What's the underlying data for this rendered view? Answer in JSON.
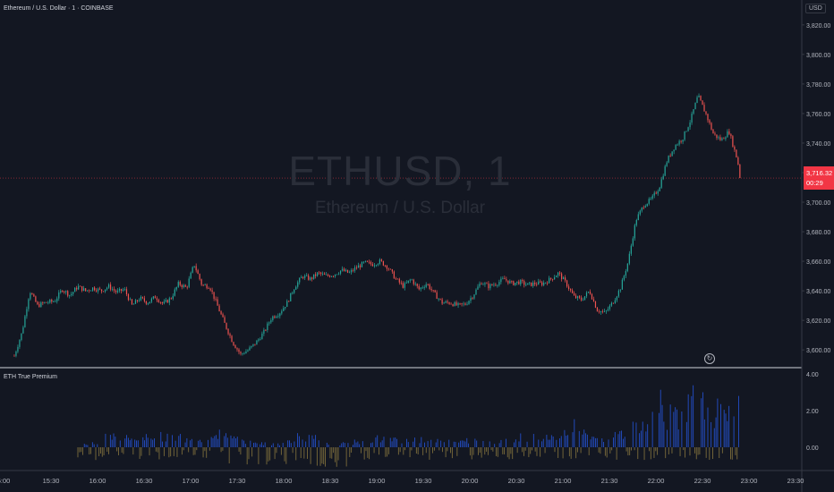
{
  "symbol_title": "Ethereum / U.S. Dollar · 1 · COINBASE",
  "watermark": {
    "ticker": "ETHUSD, 1",
    "name": "Ethereum / U.S. Dollar"
  },
  "currency_label": "USD",
  "last_price": {
    "value": "3,716.32",
    "countdown": "00:29"
  },
  "replay_icon": "replay-icon",
  "colors": {
    "background": "#131722",
    "up": "#26a69a",
    "down": "#ef5350",
    "volume": "#2962ff",
    "volume_dim": "#8d7a3f",
    "grid_separator": "#d1d4dc",
    "price_tag": "#f23645"
  },
  "indicator": {
    "name": "ETH True Premium",
    "y_ticks": [
      "4.00",
      "2.00",
      "0.00"
    ],
    "ylim": [
      -1.2,
      4.0
    ]
  },
  "chart_data": {
    "type": "candlestick",
    "x_ticks": [
      "5:00",
      "15:30",
      "16:00",
      "16:30",
      "17:00",
      "17:30",
      "18:00",
      "18:30",
      "19:00",
      "19:30",
      "20:00",
      "20:30",
      "21:00",
      "21:30",
      "22:00",
      "22:30",
      "23:00",
      "23:30"
    ],
    "y_ticks": [
      "3,820.00",
      "3,800.00",
      "3,780.00",
      "3,760.00",
      "3,740.00",
      "3,720.00",
      "3,700.00",
      "3,680.00",
      "3,660.00",
      "3,640.00",
      "3,620.00",
      "3,600.00"
    ],
    "ylim": [
      3588,
      3832
    ],
    "price_path": [
      [
        "15:04",
        3596
      ],
      [
        "15:09",
        3612
      ],
      [
        "15:14",
        3640
      ],
      [
        "15:19",
        3630
      ],
      [
        "15:24",
        3632
      ],
      [
        "15:30",
        3633
      ],
      [
        "15:35",
        3641
      ],
      [
        "15:40",
        3637
      ],
      [
        "15:45",
        3643
      ],
      [
        "15:50",
        3640
      ],
      [
        "15:55",
        3642
      ],
      [
        "16:00",
        3640
      ],
      [
        "16:05",
        3643
      ],
      [
        "16:10",
        3639
      ],
      [
        "16:15",
        3641
      ],
      [
        "16:20",
        3630
      ],
      [
        "16:25",
        3635
      ],
      [
        "16:30",
        3632
      ],
      [
        "16:35",
        3636
      ],
      [
        "16:40",
        3631
      ],
      [
        "16:45",
        3635
      ],
      [
        "16:50",
        3645
      ],
      [
        "16:55",
        3642
      ],
      [
        "17:00",
        3658
      ],
      [
        "17:05",
        3644
      ],
      [
        "17:10",
        3643
      ],
      [
        "17:15",
        3630
      ],
      [
        "17:20",
        3617
      ],
      [
        "17:25",
        3605
      ],
      [
        "17:30",
        3597
      ],
      [
        "17:35",
        3600
      ],
      [
        "17:40",
        3605
      ],
      [
        "17:45",
        3612
      ],
      [
        "17:50",
        3622
      ],
      [
        "17:55",
        3625
      ],
      [
        "18:00",
        3632
      ],
      [
        "18:05",
        3643
      ],
      [
        "18:10",
        3650
      ],
      [
        "18:15",
        3648
      ],
      [
        "18:20",
        3652
      ],
      [
        "18:25",
        3650
      ],
      [
        "18:30",
        3651
      ],
      [
        "18:35",
        3654
      ],
      [
        "18:40",
        3652
      ],
      [
        "18:45",
        3656
      ],
      [
        "18:50",
        3659
      ],
      [
        "18:55",
        3658
      ],
      [
        "19:00",
        3660
      ],
      [
        "19:05",
        3656
      ],
      [
        "19:10",
        3648
      ],
      [
        "19:15",
        3643
      ],
      [
        "19:20",
        3648
      ],
      [
        "19:25",
        3641
      ],
      [
        "19:30",
        3645
      ],
      [
        "19:35",
        3638
      ],
      [
        "19:40",
        3632
      ],
      [
        "19:45",
        3632
      ],
      [
        "19:50",
        3630
      ],
      [
        "19:55",
        3631
      ],
      [
        "20:00",
        3637
      ],
      [
        "20:05",
        3646
      ],
      [
        "20:10",
        3643
      ],
      [
        "20:15",
        3645
      ],
      [
        "20:20",
        3648
      ],
      [
        "20:25",
        3645
      ],
      [
        "20:30",
        3646
      ],
      [
        "20:35",
        3644
      ],
      [
        "20:40",
        3645
      ],
      [
        "20:45",
        3645
      ],
      [
        "20:50",
        3648
      ],
      [
        "20:55",
        3652
      ],
      [
        "21:00",
        3645
      ],
      [
        "21:05",
        3636
      ],
      [
        "21:10",
        3634
      ],
      [
        "21:15",
        3640
      ],
      [
        "21:20",
        3627
      ],
      [
        "21:25",
        3625
      ],
      [
        "21:30",
        3632
      ],
      [
        "21:35",
        3642
      ],
      [
        "21:40",
        3660
      ],
      [
        "21:45",
        3688
      ],
      [
        "21:50",
        3698
      ],
      [
        "21:55",
        3702
      ],
      [
        "22:00",
        3710
      ],
      [
        "22:05",
        3728
      ],
      [
        "22:10",
        3738
      ],
      [
        "22:15",
        3743
      ],
      [
        "22:20",
        3755
      ],
      [
        "22:25",
        3772
      ],
      [
        "22:30",
        3760
      ],
      [
        "22:35",
        3746
      ],
      [
        "22:40",
        3742
      ],
      [
        "22:45",
        3748
      ],
      [
        "22:50",
        3730
      ],
      [
        "22:53",
        3716.32
      ]
    ],
    "volume_profile": [
      0.2,
      0.2,
      0.2,
      0.2,
      0.6,
      0.7,
      0.6,
      0.5,
      0.5,
      0.6,
      0.7,
      0.6,
      0.6,
      0.5,
      0.6,
      0.5,
      0.6,
      0.5,
      0.5,
      0.6,
      0.7,
      0.6,
      0.5,
      0.5,
      0.3,
      0.3,
      0.2,
      0.2,
      0.2,
      0.2,
      0.4,
      0.6,
      0.6,
      0.5,
      0.5,
      0.3,
      0.2,
      0.2,
      0.2,
      0.2,
      0.3,
      0.4,
      0.4,
      0.5,
      0.5,
      0.4,
      0.4,
      0.4,
      0.5,
      0.4,
      0.3,
      0.4,
      0.4,
      0.3,
      0.3,
      0.3,
      0.4,
      0.4,
      0.4,
      0.3,
      0.3,
      0.5,
      0.6,
      0.5,
      0.6,
      0.6,
      0.6,
      0.6,
      0.5,
      0.8,
      1.0,
      1.2,
      0.9,
      0.7,
      0.6,
      0.4,
      0.5,
      0.6,
      0.7,
      0.8,
      1.0,
      1.4,
      1.6,
      2.0,
      2.3,
      1.7,
      1.8,
      2.0,
      2.3,
      2.6,
      2.2,
      2.0,
      1.9,
      2.1,
      2.2,
      2.0
    ]
  }
}
